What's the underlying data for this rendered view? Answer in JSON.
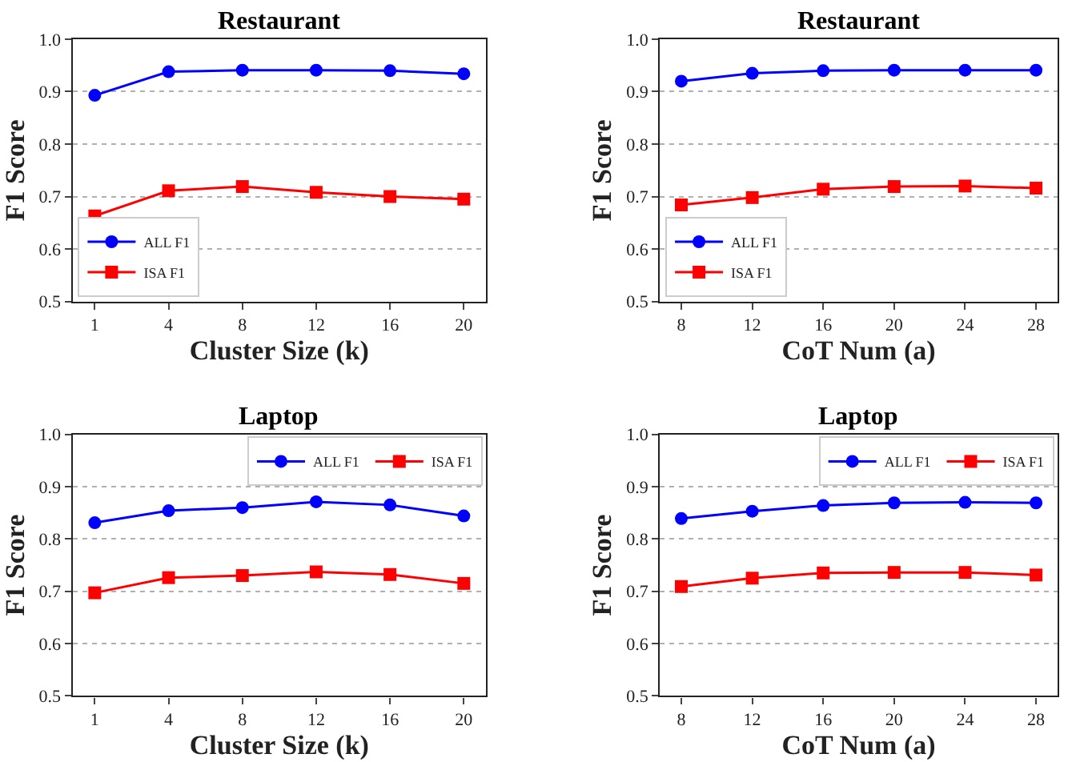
{
  "chart_data": [
    {
      "type": "line",
      "title": "Restaurant",
      "xlabel": "Cluster Size (k)",
      "ylabel": "F1 Score",
      "categories": [
        "1",
        "4",
        "8",
        "12",
        "16",
        "20"
      ],
      "ylim": [
        0.5,
        1.0
      ],
      "yticks": [
        {
          "value": 0.5,
          "label": "0.5"
        },
        {
          "value": 0.6,
          "label": "0.6"
        },
        {
          "value": 0.7,
          "label": "0.7"
        },
        {
          "value": 0.8,
          "label": "0.8"
        },
        {
          "value": 0.9,
          "label": "0.9"
        },
        {
          "value": 1.0,
          "label": "1.0"
        }
      ],
      "grid": "y",
      "legend": "bottom left",
      "series": [
        {
          "name": "ALL F1",
          "color": "#0000ff",
          "marker": "circle",
          "values": [
            0.893,
            0.938,
            0.941,
            0.941,
            0.94,
            0.934
          ]
        },
        {
          "name": "ISA F1",
          "color": "#ff0000",
          "marker": "square",
          "values": [
            0.663,
            0.711,
            0.719,
            0.708,
            0.7,
            0.695
          ]
        }
      ]
    },
    {
      "type": "line",
      "title": "Restaurant",
      "xlabel": "CoT Num (a)",
      "ylabel": "F1 Score",
      "categories": [
        "8",
        "12",
        "16",
        "20",
        "24",
        "28"
      ],
      "ylim": [
        0.5,
        1.0
      ],
      "yticks": [
        {
          "value": 0.5,
          "label": "0.5"
        },
        {
          "value": 0.6,
          "label": "0.6"
        },
        {
          "value": 0.7,
          "label": "0.7"
        },
        {
          "value": 0.8,
          "label": "0.8"
        },
        {
          "value": 0.9,
          "label": "0.9"
        },
        {
          "value": 1.0,
          "label": "1.0"
        }
      ],
      "grid": "y",
      "legend": "bottom left",
      "series": [
        {
          "name": "ALL F1",
          "color": "#0000ff",
          "marker": "circle",
          "values": [
            0.92,
            0.935,
            0.94,
            0.941,
            0.941,
            0.941
          ]
        },
        {
          "name": "ISA F1",
          "color": "#ff0000",
          "marker": "square",
          "values": [
            0.684,
            0.698,
            0.714,
            0.719,
            0.72,
            0.716
          ]
        }
      ]
    },
    {
      "type": "line",
      "title": "Laptop",
      "xlabel": "Cluster Size (k)",
      "ylabel": "F1 Score",
      "categories": [
        "1",
        "4",
        "8",
        "12",
        "16",
        "20"
      ],
      "ylim": [
        0.5,
        1.0
      ],
      "yticks": [
        {
          "value": 0.5,
          "label": "0.5"
        },
        {
          "value": 0.6,
          "label": "0.6"
        },
        {
          "value": 0.7,
          "label": "0.7"
        },
        {
          "value": 0.8,
          "label": "0.8"
        },
        {
          "value": 0.9,
          "label": "0.9"
        },
        {
          "value": 1.0,
          "label": "1.0"
        }
      ],
      "grid": "y",
      "legend": "top right",
      "series": [
        {
          "name": "ALL F1",
          "color": "#0000ff",
          "marker": "circle",
          "values": [
            0.831,
            0.854,
            0.86,
            0.871,
            0.865,
            0.844
          ]
        },
        {
          "name": "ISA F1",
          "color": "#ff0000",
          "marker": "square",
          "values": [
            0.697,
            0.726,
            0.73,
            0.737,
            0.732,
            0.715
          ]
        }
      ]
    },
    {
      "type": "line",
      "title": "Laptop",
      "xlabel": "CoT Num (a)",
      "ylabel": "F1 Score",
      "categories": [
        "8",
        "12",
        "16",
        "20",
        "24",
        "28"
      ],
      "ylim": [
        0.5,
        1.0
      ],
      "yticks": [
        {
          "value": 0.5,
          "label": "0.5"
        },
        {
          "value": 0.6,
          "label": "0.6"
        },
        {
          "value": 0.7,
          "label": "0.7"
        },
        {
          "value": 0.8,
          "label": "0.8"
        },
        {
          "value": 0.9,
          "label": "0.9"
        },
        {
          "value": 1.0,
          "label": "1.0"
        }
      ],
      "grid": "y",
      "legend": "top right",
      "series": [
        {
          "name": "ALL F1",
          "color": "#0000ff",
          "marker": "circle",
          "values": [
            0.839,
            0.853,
            0.864,
            0.869,
            0.87,
            0.869
          ]
        },
        {
          "name": "ISA F1",
          "color": "#ff0000",
          "marker": "square",
          "values": [
            0.709,
            0.725,
            0.735,
            0.736,
            0.736,
            0.731
          ]
        }
      ]
    }
  ]
}
